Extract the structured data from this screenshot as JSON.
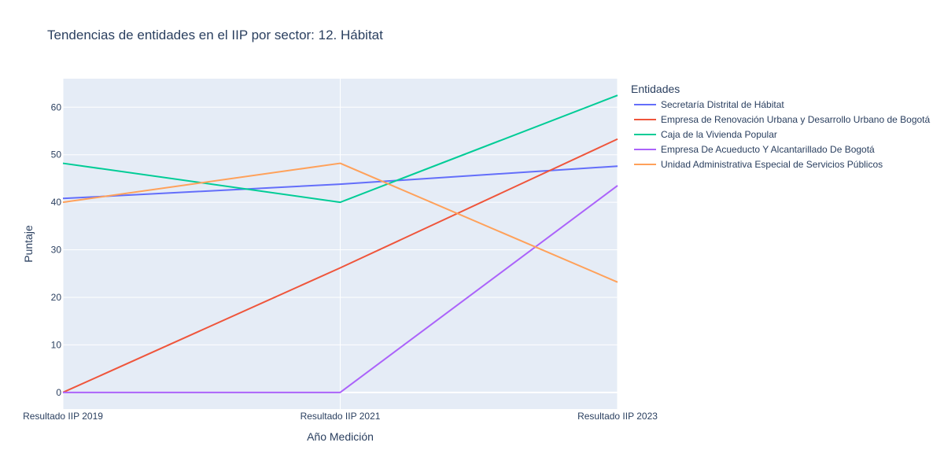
{
  "chart_data": {
    "type": "line",
    "title": "Tendencias de entidades en el IIP por sector: 12. Hábitat",
    "xlabel": "Año Medición",
    "ylabel": "Puntaje",
    "categories": [
      "Resultado IIP 2019",
      "Resultado IIP 2021",
      "Resultado IIP 2023"
    ],
    "ylim": [
      -3.5,
      66
    ],
    "yticks": [
      0,
      10,
      20,
      30,
      40,
      50,
      60
    ],
    "grid": true,
    "legend": {
      "title": "Entidades",
      "placement": "right"
    },
    "series": [
      {
        "name": "Secretaría Distrital de Hábitat",
        "color": "#636efa",
        "values": [
          40.8,
          43.8,
          47.6
        ]
      },
      {
        "name": "Empresa de Renovación Urbana y Desarrollo Urbano de Bogotá",
        "color": "#EF553B",
        "values": [
          0,
          26.2,
          53.3
        ]
      },
      {
        "name": "Caja de la Vivienda Popular",
        "color": "#00cc96",
        "values": [
          48.2,
          40.0,
          62.5
        ]
      },
      {
        "name": "Empresa De Acueducto Y Alcantarillado De Bogotá",
        "color": "#ab63fa",
        "values": [
          0,
          0,
          43.5
        ]
      },
      {
        "name": "Unidad Administrativa Especial de Servicios Públicos",
        "color": "#FFA15A",
        "values": [
          40.0,
          48.2,
          23.2
        ]
      }
    ]
  }
}
